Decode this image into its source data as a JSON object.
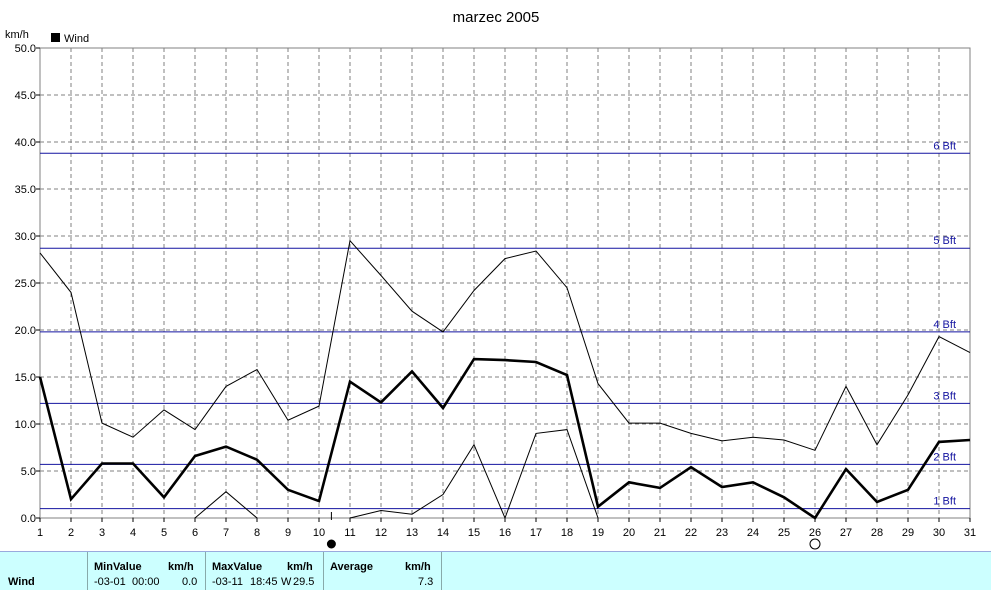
{
  "chart_data": {
    "type": "line",
    "title": "marzec 2005",
    "ylabel": "km/h",
    "ylim": [
      0,
      50
    ],
    "xlim": [
      1,
      31
    ],
    "y_ticks": [
      "0.0",
      "5.0",
      "10.0",
      "15.0",
      "20.0",
      "25.0",
      "30.0",
      "35.0",
      "40.0",
      "45.0",
      "50.0"
    ],
    "x_ticks": [
      "1",
      "2",
      "3",
      "4",
      "5",
      "6",
      "7",
      "8",
      "9",
      "10",
      "11",
      "12",
      "13",
      "14",
      "15",
      "16",
      "17",
      "18",
      "19",
      "20",
      "21",
      "22",
      "23",
      "24",
      "25",
      "26",
      "27",
      "28",
      "29",
      "30",
      "31"
    ],
    "grid": true,
    "legend": {
      "position": "top-left",
      "entries": [
        "Wind"
      ]
    },
    "x": [
      1,
      2,
      3,
      4,
      5,
      6,
      7,
      8,
      9,
      10,
      11,
      12,
      13,
      14,
      15,
      16,
      17,
      18,
      19,
      20,
      21,
      22,
      23,
      24,
      25,
      26,
      27,
      28,
      29,
      30,
      31
    ],
    "series": [
      {
        "name": "Wind",
        "role": "average",
        "color": "#000000",
        "values": [
          15.0,
          2.0,
          5.8,
          5.8,
          2.2,
          6.6,
          7.6,
          6.2,
          3.0,
          1.8,
          14.5,
          12.3,
          15.6,
          11.7,
          16.9,
          16.8,
          16.6,
          15.2,
          1.2,
          3.8,
          3.2,
          5.4,
          3.3,
          3.8,
          2.2,
          0.0,
          5.2,
          1.7,
          3.0,
          8.1,
          8.3
        ]
      },
      {
        "role": "max",
        "color": "#000000",
        "values": [
          28.2,
          24.0,
          10.1,
          8.6,
          11.5,
          9.4,
          14.0,
          15.8,
          10.4,
          11.9,
          29.5,
          25.8,
          22.0,
          19.8,
          24.2,
          27.6,
          28.4,
          24.5,
          14.3,
          10.1,
          10.1,
          9.0,
          8.2,
          8.6,
          8.3,
          7.2,
          14.0,
          7.8,
          13.1,
          19.3,
          17.6
        ]
      },
      {
        "role": "min",
        "color": "#000000",
        "values": [
          null,
          null,
          null,
          null,
          null,
          0.0,
          2.8,
          0.0,
          null,
          null,
          0.0,
          0.8,
          0.4,
          2.5,
          7.8,
          0.0,
          9.0,
          9.4,
          0.0,
          null,
          null,
          null,
          null,
          null,
          null,
          null,
          null,
          null,
          null,
          null,
          null
        ]
      }
    ],
    "beaufort_lines": [
      {
        "label": "1 Bft",
        "value": 1.0
      },
      {
        "label": "2 Bft",
        "value": 5.7
      },
      {
        "label": "3 Bft",
        "value": 12.2
      },
      {
        "label": "4 Bft",
        "value": 19.8
      },
      {
        "label": "5 Bft",
        "value": 28.7
      },
      {
        "label": "6 Bft",
        "value": 38.8
      }
    ],
    "markers": [
      {
        "type": "filled-circle",
        "x": 10.4,
        "meaning": "min"
      },
      {
        "type": "open-circle",
        "x": 26.0,
        "meaning": "max"
      }
    ],
    "colors": {
      "beaufort": "#1414a0",
      "grid": "#808080",
      "stats_bg": "#ccffff"
    }
  },
  "stats": {
    "row_label": "Wind",
    "min_header": "MinValue",
    "min_unit": "km/h",
    "min_date": "-03-01",
    "min_time": "00:00",
    "min_value": "0.0",
    "max_header": "MaxValue",
    "max_unit": "km/h",
    "max_date": "-03-11",
    "max_time": "18:45",
    "max_dir": "W",
    "max_value": "29.5",
    "avg_header": "Average",
    "avg_unit": "km/h",
    "avg_value": "7.3"
  }
}
